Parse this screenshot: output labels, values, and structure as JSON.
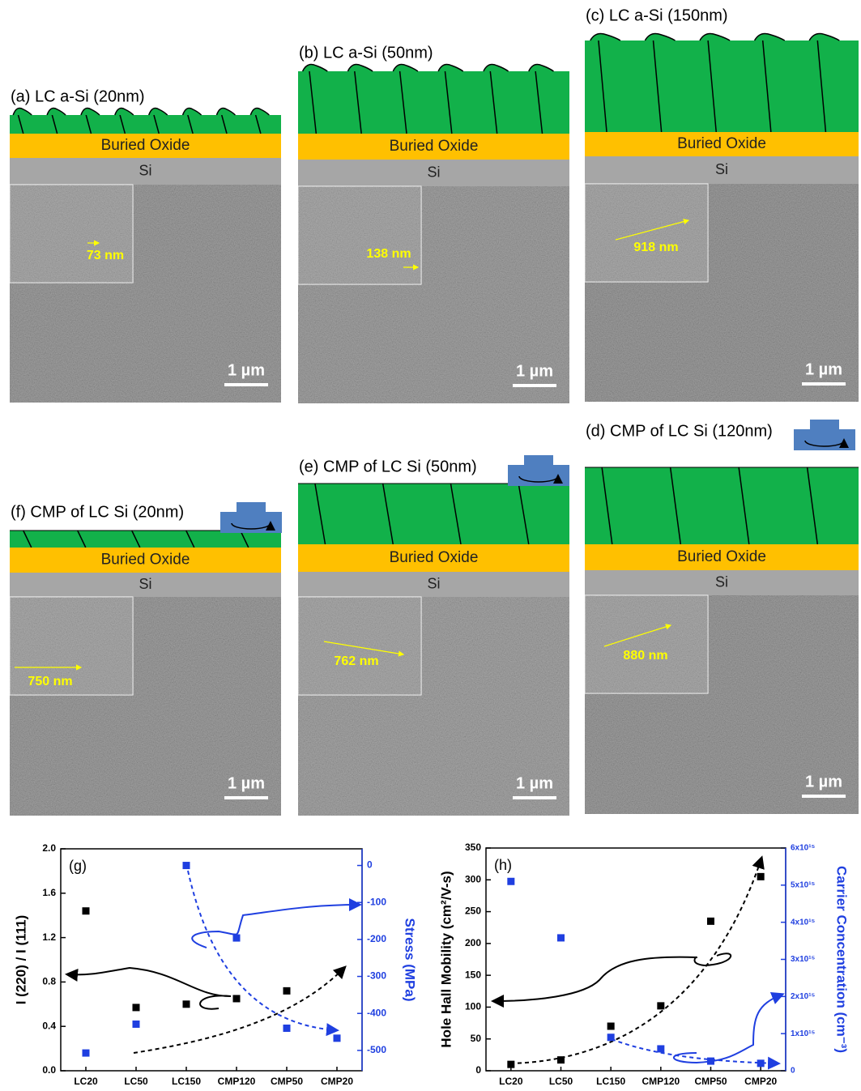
{
  "panels": [
    {
      "title": "(a) LC a-Si (20nm)",
      "oxide": "Buried Oxide",
      "substrate": "Si",
      "measurement": "73 nm",
      "scale": "1 µm"
    },
    {
      "title": "(b) LC a-Si (50nm)",
      "oxide": "Buried Oxide",
      "substrate": "Si",
      "measurement": "138 nm",
      "scale": "1 µm"
    },
    {
      "title": "(c) LC a-Si (150nm)",
      "oxide": "Buried Oxide",
      "substrate": "Si",
      "measurement": "918 nm",
      "scale": "1 µm"
    },
    {
      "title": "(f) CMP of LC Si (20nm)",
      "oxide": "Buried Oxide",
      "substrate": "Si",
      "measurement": "750 nm",
      "scale": "1 µm"
    },
    {
      "title": "(e) CMP of LC Si (50nm)",
      "oxide": "Buried Oxide",
      "substrate": "Si",
      "measurement": "762 nm",
      "scale": "1 µm"
    },
    {
      "title": "(d) CMP of LC Si (120nm)",
      "oxide": "Buried Oxide",
      "substrate": "Si",
      "measurement": "880 nm",
      "scale": "1 µm"
    }
  ],
  "chart_data": [
    {
      "type": "scatter",
      "title": "(g)",
      "categories": [
        "LC20",
        "LC50",
        "LC150",
        "CMP120",
        "CMP50",
        "CMP20"
      ],
      "ylabel": "I (220) / I (111)",
      "y2label": "Stress (MPa)",
      "ylim": [
        0,
        2.0
      ],
      "yticks": [
        {
          "value": 0,
          "label": "0.0"
        },
        0.4,
        0.8,
        1.2,
        1.6,
        {
          "value": 2,
          "label": "2.0"
        }
      ],
      "y2lim": [
        -555,
        45
      ],
      "y2ticks": [
        -500,
        -400,
        -300,
        -200,
        -100,
        0
      ],
      "series": [
        {
          "color": "#000000",
          "values": [
            1.44,
            0.57,
            0.6,
            0.65,
            0.72,
            null
          ]
        },
        {
          "color": "#1f3fe0",
          "axis": "y2",
          "values": [
            -507,
            -429,
            0,
            -196,
            -440,
            -467
          ]
        }
      ]
    },
    {
      "type": "scatter",
      "title": "(h)",
      "categories": [
        "LC20",
        "LC50",
        "LC150",
        "CMP120",
        "CMP50",
        "CMP20"
      ],
      "ylabel": "Hole Hall Mobility (cm²/V-s)",
      "y2label": "Carrier Concentration (cm⁻³)",
      "ylim": [
        0,
        350
      ],
      "yticks": [
        0,
        50,
        100,
        150,
        200,
        250,
        300,
        350
      ],
      "y2lim": [
        0,
        6000000000000000.0
      ],
      "y2ticks": [
        0,
        {
          "value": 1000000000000000.0,
          "label": "1x10¹⁵"
        },
        {
          "value": 2000000000000000.0,
          "label": "2x10¹⁵"
        },
        {
          "value": 3000000000000000.0,
          "label": "3x10¹⁵"
        },
        {
          "value": 4000000000000000.0,
          "label": "4x10¹⁵"
        },
        {
          "value": 5000000000000000.0,
          "label": "5x10¹⁵"
        },
        {
          "value": 6000000000000000.0,
          "label": "6x10¹⁵"
        }
      ],
      "series": [
        {
          "color": "#000000",
          "values": [
            10,
            17,
            70,
            102,
            235,
            305
          ]
        },
        {
          "color": "#1f3fe0",
          "axis": "y2",
          "values": [
            5100000000000000.0,
            3580000000000000.0,
            900000000000000.0,
            590000000000000.0,
            260000000000000.0,
            200000000000000.0
          ]
        }
      ]
    }
  ]
}
